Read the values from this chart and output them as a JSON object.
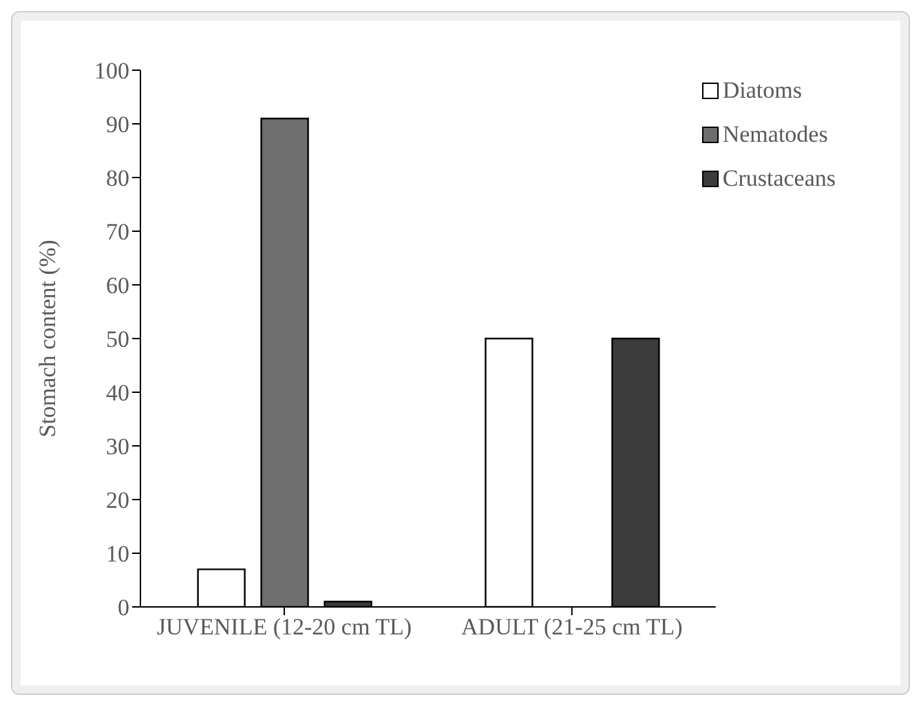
{
  "chart_data": {
    "type": "bar",
    "ylabel": "Stomach content (%)",
    "categories": [
      "JUVENILE (12-20 cm TL)",
      "ADULT (21-25 cm TL)"
    ],
    "series": [
      {
        "name": "Diatoms",
        "color": "#ffffff",
        "values": [
          7,
          50
        ]
      },
      {
        "name": "Nematodes",
        "color": "#6e6e6e",
        "values": [
          91,
          null
        ]
      },
      {
        "name": "Crustaceans",
        "color": "#3c3c3c",
        "values": [
          1,
          50
        ]
      }
    ],
    "ylim": [
      0,
      100
    ],
    "yticks": [
      0,
      10,
      20,
      30,
      40,
      50,
      60,
      70,
      80,
      90,
      100
    ],
    "grid": false,
    "legend": "top right"
  }
}
